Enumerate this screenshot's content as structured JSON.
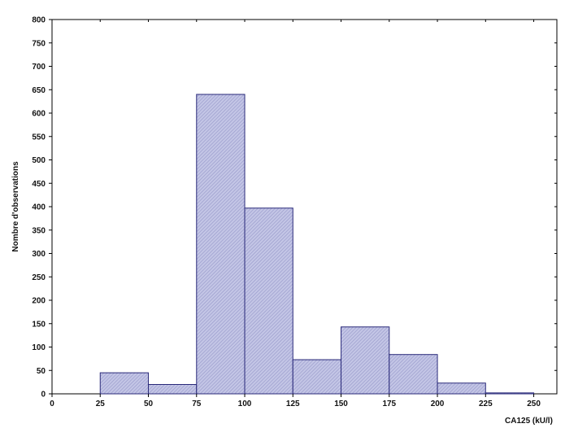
{
  "chart_data": {
    "type": "bar",
    "title": "",
    "xlabel": "CA125 (kU/l)",
    "ylabel": "Nombre d'observations",
    "bin_width": 25,
    "bins": [
      {
        "start": 25,
        "end": 50,
        "value": 45
      },
      {
        "start": 50,
        "end": 75,
        "value": 20
      },
      {
        "start": 75,
        "end": 100,
        "value": 640
      },
      {
        "start": 100,
        "end": 125,
        "value": 397
      },
      {
        "start": 125,
        "end": 150,
        "value": 73
      },
      {
        "start": 150,
        "end": 175,
        "value": 143
      },
      {
        "start": 175,
        "end": 200,
        "value": 84
      },
      {
        "start": 200,
        "end": 225,
        "value": 23
      },
      {
        "start": 225,
        "end": 250,
        "value": 2
      }
    ],
    "xlim": [
      0,
      262
    ],
    "ylim": [
      0,
      800
    ],
    "xticks": [
      0,
      25,
      50,
      75,
      100,
      125,
      150,
      175,
      200,
      225,
      250
    ],
    "yticks": [
      0,
      50,
      100,
      150,
      200,
      250,
      300,
      350,
      400,
      450,
      500,
      550,
      600,
      650,
      700,
      750,
      800
    ],
    "grid": false,
    "legend": "none",
    "colors": {
      "bar_fill": "#c4c6e6",
      "bar_hatch": "#9a9ccc",
      "bar_stroke": "#2a2a7a",
      "axis": "#000000"
    }
  }
}
